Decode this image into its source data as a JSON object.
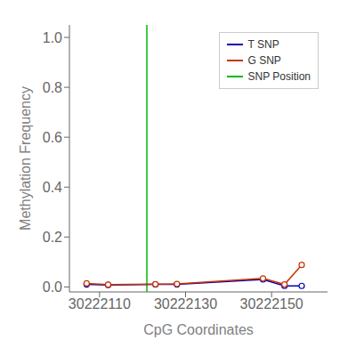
{
  "chart_data": {
    "type": "line",
    "xlabel": "CpG Coordinates",
    "ylabel": "Methylation Frequency",
    "x": [
      30222107,
      30222112,
      30222123,
      30222128,
      30222148,
      30222153,
      30222157
    ],
    "series": [
      {
        "name": "T SNP",
        "color": "#0000bb",
        "marker": "circle",
        "line_style": "solid",
        "values": [
          0.01,
          0.008,
          0.01,
          0.01,
          0.03,
          0.004,
          0.004
        ]
      },
      {
        "name": "G SNP",
        "color": "#cc3300",
        "marker": "circle",
        "line_style": "solid",
        "values": [
          0.014,
          0.009,
          0.011,
          0.012,
          0.034,
          0.01,
          0.088
        ]
      }
    ],
    "reference_lines": [
      {
        "name": "SNP Position",
        "color": "#00bb00",
        "x": 30222121
      }
    ],
    "xlim": [
      30222103,
      30222163
    ],
    "ylim": [
      -0.02,
      1.05
    ],
    "xticks": [
      30222110,
      30222130,
      30222150
    ],
    "yticks": [
      {
        "value": 0,
        "label": "0.0"
      },
      0.2,
      0.4,
      0.6,
      0.8,
      {
        "value": 1,
        "label": "1.0"
      }
    ],
    "grid": false,
    "legend": "upper right"
  }
}
